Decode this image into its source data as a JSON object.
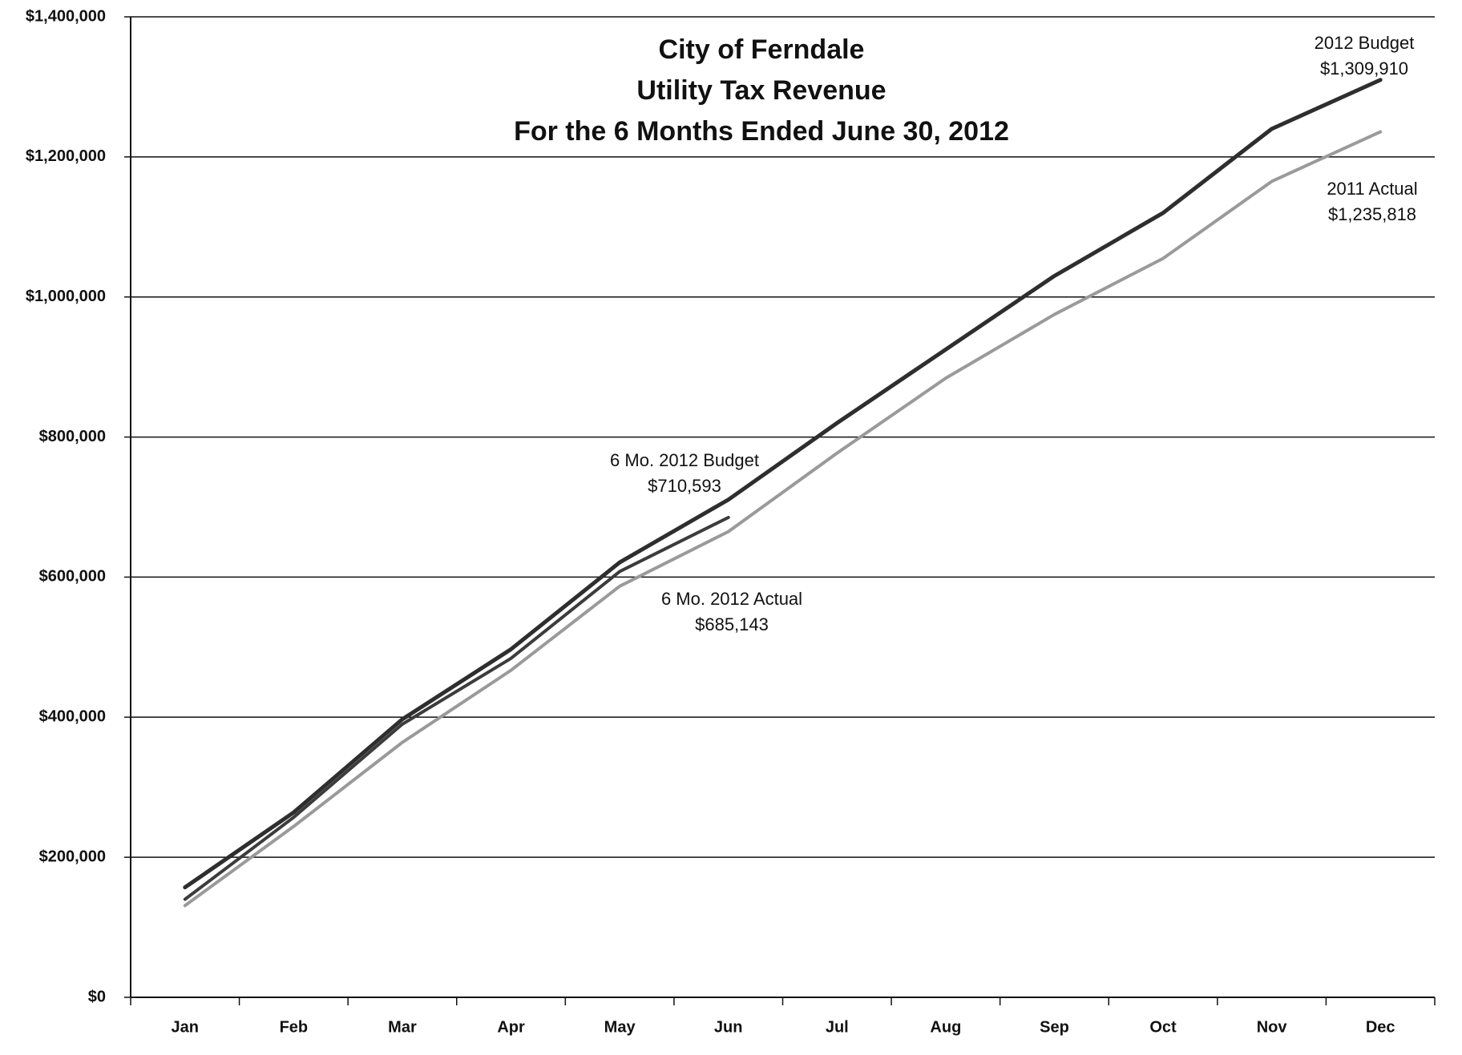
{
  "chart_data": {
    "type": "line",
    "title_lines": [
      "City of Ferndale",
      "Utility Tax Revenue",
      "For the 6 Months Ended June 30, 2012"
    ],
    "categories": [
      "Jan",
      "Feb",
      "Mar",
      "Apr",
      "May",
      "Jun",
      "Jul",
      "Aug",
      "Sep",
      "Oct",
      "Nov",
      "Dec"
    ],
    "series": [
      {
        "name": "2012 Budget",
        "color": "#2e2e2e",
        "width": 5,
        "values": [
          157000,
          264000,
          397000,
          497000,
          621000,
          710593,
          820000,
          925000,
          1030000,
          1120000,
          1240000,
          1309910
        ]
      },
      {
        "name": "2012 Actual",
        "color": "#3c3c3c",
        "width": 4,
        "values": [
          140000,
          257000,
          390000,
          484000,
          608000,
          685143,
          null,
          null,
          null,
          null,
          null,
          null
        ]
      },
      {
        "name": "2011 Actual",
        "color": "#9a9a9a",
        "width": 4,
        "values": [
          131000,
          244000,
          364000,
          467000,
          587000,
          665000,
          777000,
          884000,
          975000,
          1055000,
          1165000,
          1235818
        ]
      }
    ],
    "annotations": [
      {
        "lines": [
          "2012 Budget",
          "$1,309,910"
        ]
      },
      {
        "lines": [
          "2011 Actual",
          "$1,235,818"
        ]
      },
      {
        "lines": [
          "6 Mo. 2012 Budget",
          "$710,593"
        ]
      },
      {
        "lines": [
          "6 Mo. 2012 Actual",
          "$685,143"
        ]
      }
    ],
    "ylim": [
      0,
      1400000
    ],
    "yticks": [
      {
        "value": 0,
        "label": "$0"
      },
      {
        "value": 200000,
        "label": "$200,000"
      },
      {
        "value": 400000,
        "label": "$400,000"
      },
      {
        "value": 600000,
        "label": "$600,000"
      },
      {
        "value": 800000,
        "label": "$800,000"
      },
      {
        "value": 1000000,
        "label": "$1,000,000"
      },
      {
        "value": 1200000,
        "label": "$1,200,000"
      },
      {
        "value": 1400000,
        "label": "$1,400,000"
      }
    ],
    "grid": true
  }
}
